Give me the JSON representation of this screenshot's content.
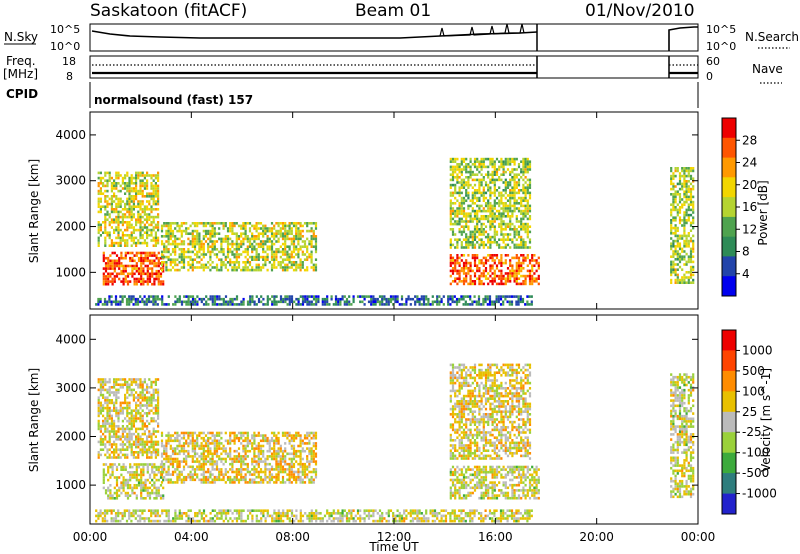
{
  "header": {
    "station": "Saskatoon (fitACF)",
    "beam": "Beam 01",
    "date": "01/Nov/2010"
  },
  "strip": {
    "nsky_label": "N.Sky",
    "nsearch_label": "N.Search",
    "nsky_ticks": [
      "10^5",
      "10^0"
    ],
    "freq_label_1": "Freq.",
    "freq_label_2": "[MHz]",
    "freq_ticks": [
      "18",
      "8"
    ],
    "nave_label": "Nave",
    "nave_ticks": [
      "60",
      "0"
    ],
    "cpid_label": "CPID",
    "cpid_value": "normalsound (fast) 157"
  },
  "colors": {
    "power": [
      "#0000ee",
      "#2244aa",
      "#2e8b57",
      "#4fa34f",
      "#b5d431",
      "#f2d600",
      "#ff9900",
      "#ff5500",
      "#ee0000"
    ],
    "velocity": [
      "#2222cc",
      "#2e7d7d",
      "#3caa3c",
      "#9ad13a",
      "#bbbbbb",
      "#e8c000",
      "#ff8c00",
      "#ff4400",
      "#ee0000"
    ]
  },
  "chart_data": [
    {
      "type": "heatmap",
      "name": "power",
      "xlabel": "",
      "ylabel": "Slant Range [km]",
      "yticks": [
        "1000",
        "2000",
        "3000",
        "4000"
      ],
      "ylim": [
        200,
        4500
      ],
      "xlim": [
        0,
        24
      ],
      "colorbar": {
        "label": "Power [dB]",
        "ticks": [
          "4",
          "8",
          "12",
          "16",
          "20",
          "24",
          "28"
        ],
        "range": [
          0,
          32
        ]
      },
      "regions": [
        {
          "t": [
            0.5,
            3.0
          ],
          "r": [
            700,
            1450
          ],
          "value": 27
        },
        {
          "t": [
            0.3,
            2.8
          ],
          "r": [
            1500,
            3200
          ],
          "value": 18
        },
        {
          "t": [
            2.8,
            9.0
          ],
          "r": [
            1000,
            2100
          ],
          "value": 17
        },
        {
          "t": [
            0.2,
            17.5
          ],
          "r": [
            220,
            500
          ],
          "value": 8
        },
        {
          "t": [
            14.2,
            17.8
          ],
          "r": [
            700,
            1400
          ],
          "value": 26
        },
        {
          "t": [
            14.2,
            17.5
          ],
          "r": [
            1500,
            3500
          ],
          "value": 16
        },
        {
          "t": [
            22.9,
            23.9
          ],
          "r": [
            700,
            3300
          ],
          "value": 16
        }
      ]
    },
    {
      "type": "heatmap",
      "name": "velocity",
      "xlabel": "Time UT",
      "ylabel": "Slant Range [km]",
      "xticks": [
        "00:00",
        "04:00",
        "08:00",
        "12:00",
        "16:00",
        "20:00",
        "00:00"
      ],
      "yticks": [
        "1000",
        "2000",
        "3000",
        "4000"
      ],
      "ylim": [
        200,
        4500
      ],
      "xlim": [
        0,
        24
      ],
      "colorbar": {
        "label": "Velocity [m s^-1]",
        "ticks": [
          "1000",
          "500",
          "100",
          "25",
          "-25",
          "-100",
          "-500",
          "-1000"
        ],
        "range": [
          1500,
          -1500
        ]
      },
      "regions": [
        {
          "t": [
            0.5,
            3.0
          ],
          "r": [
            700,
            1450
          ],
          "value": 0
        },
        {
          "t": [
            0.3,
            2.8
          ],
          "r": [
            1500,
            3200
          ],
          "value": -120
        },
        {
          "t": [
            2.8,
            9.0
          ],
          "r": [
            1000,
            2100
          ],
          "value": -200
        },
        {
          "t": [
            0.2,
            17.5
          ],
          "r": [
            220,
            500
          ],
          "value": 0
        },
        {
          "t": [
            14.2,
            17.8
          ],
          "r": [
            700,
            1400
          ],
          "value": 0
        },
        {
          "t": [
            14.2,
            17.5
          ],
          "r": [
            1500,
            3500
          ],
          "value": -150
        },
        {
          "t": [
            22.9,
            23.9
          ],
          "r": [
            700,
            3300
          ],
          "value": 0
        }
      ]
    }
  ]
}
